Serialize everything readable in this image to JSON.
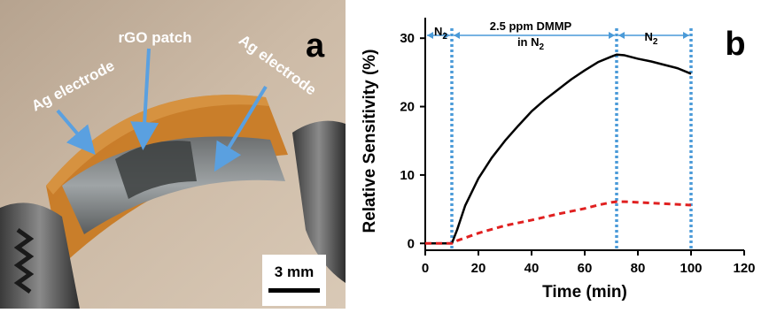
{
  "panel_a": {
    "letter": "a",
    "labels": {
      "rgo": "rGO patch",
      "ag_left": "Ag electrode",
      "ag_right": "Ag electrode"
    },
    "scalebar": "3 mm",
    "colors": {
      "background": "#c9b7a3",
      "substrate": "#c9781f",
      "arrow": "#5aa0e0"
    }
  },
  "panel_b": {
    "letter": "b",
    "annotations": {
      "n2_left_text": "N",
      "n2_left_sub": "2",
      "dmmp_line1": "2.5 ppm DMMP",
      "dmmp_line2_text": "in N",
      "dmmp_line2_sub": "2",
      "n2_right_text": "N",
      "n2_right_sub": "2"
    }
  },
  "chart_data": {
    "type": "line",
    "xlabel": "Time (min)",
    "ylabel": "Relative Sensitivity (%)",
    "xlim": [
      0,
      120
    ],
    "ylim": [
      -1,
      33
    ],
    "xticks": [
      0,
      20,
      40,
      60,
      80,
      100,
      120
    ],
    "yticks": [
      0,
      10,
      20,
      30
    ],
    "grid": false,
    "vlines": [
      10,
      72,
      100
    ],
    "series": [
      {
        "color": "#000000",
        "style": "solid",
        "x": [
          0,
          5,
          10,
          12,
          15,
          20,
          25,
          30,
          35,
          40,
          45,
          50,
          55,
          60,
          65,
          70,
          72,
          75,
          80,
          85,
          90,
          95,
          100
        ],
        "y": [
          0,
          0,
          0,
          2,
          5.5,
          9.5,
          12.5,
          15,
          17.2,
          19.3,
          21,
          22.5,
          24,
          25.3,
          26.5,
          27.3,
          27.6,
          27.5,
          27,
          26.6,
          26.1,
          25.6,
          24.8
        ]
      },
      {
        "color": "#e02020",
        "style": "dashed",
        "x": [
          0,
          5,
          10,
          12,
          20,
          30,
          40,
          50,
          60,
          65,
          70,
          72,
          75,
          80,
          90,
          100
        ],
        "y": [
          0,
          0,
          0,
          0.4,
          1.5,
          2.6,
          3.4,
          4.3,
          5.1,
          5.6,
          6,
          6.1,
          6.1,
          6,
          5.8,
          5.6
        ]
      }
    ]
  }
}
